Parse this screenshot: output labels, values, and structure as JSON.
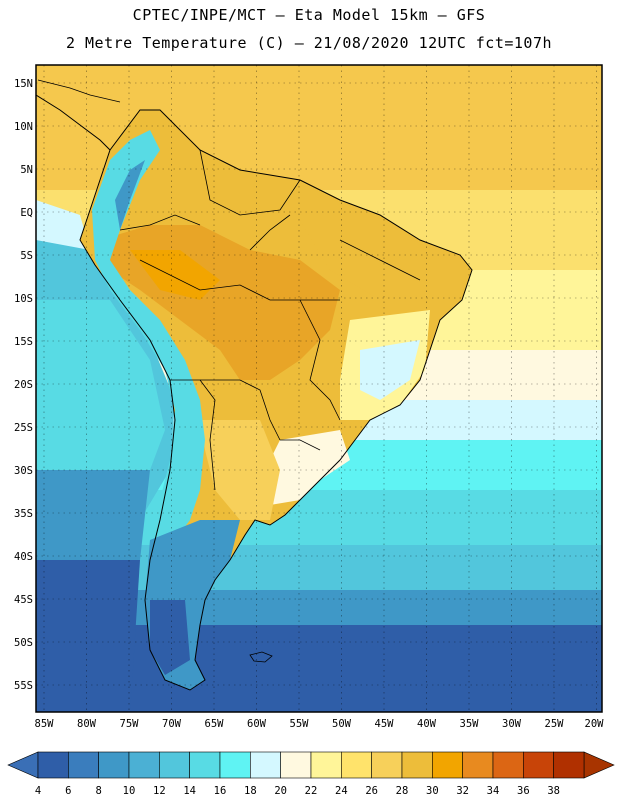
{
  "title": {
    "line1": "CPTEC/INPE/MCT –  Eta Model 15km – GFS",
    "line2": "2 Metre Temperature (C) – 21/08/2020 12UTC fct=107h"
  },
  "axes": {
    "lat_labels": [
      "15N",
      "10N",
      "5N",
      "EQ",
      "5S",
      "10S",
      "15S",
      "20S",
      "25S",
      "30S",
      "35S",
      "40S",
      "45S",
      "50S",
      "55S"
    ],
    "lon_labels": [
      "85W",
      "80W",
      "75W",
      "70W",
      "65W",
      "60W",
      "55W",
      "50W",
      "45W",
      "40W",
      "35W",
      "30W",
      "25W",
      "20W"
    ]
  },
  "colorbar": {
    "labels": [
      "4",
      "6",
      "8",
      "10",
      "12",
      "14",
      "16",
      "18",
      "20",
      "22",
      "24",
      "26",
      "28",
      "30",
      "32",
      "34",
      "36",
      "38"
    ],
    "colors": [
      "#2f5ea8",
      "#3a7dbd",
      "#3f98c7",
      "#4bb0d4",
      "#52c6dc",
      "#58dbe4",
      "#5ff3f3",
      "#d4f8ff",
      "#fff9e0",
      "#fff599",
      "#ffe36b",
      "#f7d05a",
      "#edbd3a",
      "#f2a500",
      "#e88a1f",
      "#dc6614",
      "#c84408",
      "#b03000"
    ]
  },
  "map": {
    "projection": "lat-lon",
    "lon_range": [
      -86,
      -19
    ],
    "lat_range": [
      -57,
      17
    ],
    "grid": true,
    "regions": {
      "continent_tropical": "#edbd3a",
      "amazon_hot": "#e8a527",
      "andes_cold": "#58dbe4",
      "patagonia": "#3f98c7",
      "atlantic_north": "#f7d05a",
      "atlantic_south_cold": "#2f5ea8"
    }
  }
}
